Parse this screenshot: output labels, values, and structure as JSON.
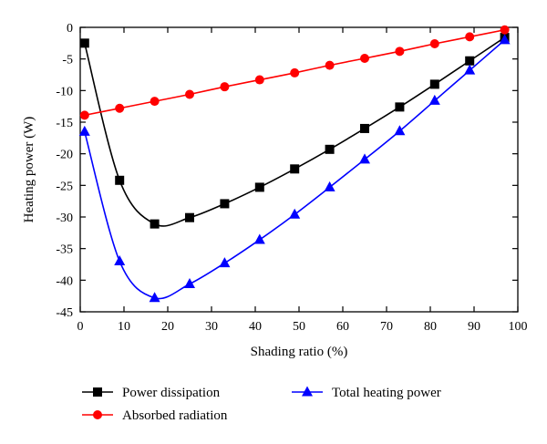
{
  "chart_data": {
    "type": "line",
    "title": "",
    "xlabel": "Shading ratio (%)",
    "ylabel": "Heating power (W)",
    "xlim": [
      0,
      100
    ],
    "ylim": [
      -45,
      0
    ],
    "xticks": [
      0,
      10,
      20,
      30,
      40,
      50,
      60,
      70,
      80,
      90,
      100
    ],
    "yticks": [
      0,
      -5,
      -10,
      -15,
      -20,
      -25,
      -30,
      -35,
      -40,
      -45
    ],
    "grid": false,
    "legend_position": "bottom",
    "series": [
      {
        "name": "Power dissipation",
        "color": "#000000",
        "marker": "square",
        "x": [
          1,
          9,
          17,
          25,
          33,
          41,
          49,
          57,
          65,
          73,
          81,
          89,
          97
        ],
        "y": [
          -2.5,
          -24.2,
          -31.1,
          -30.1,
          -27.9,
          -25.3,
          -22.4,
          -19.3,
          -16.0,
          -12.6,
          -9.0,
          -5.3,
          -1.6
        ]
      },
      {
        "name": "Absorbed radiation",
        "color": "#ff0000",
        "marker": "circle",
        "x": [
          1,
          9,
          17,
          25,
          33,
          41,
          49,
          57,
          65,
          73,
          81,
          89,
          97
        ],
        "y": [
          -13.9,
          -12.8,
          -11.7,
          -10.6,
          -9.4,
          -8.3,
          -7.2,
          -6.0,
          -4.9,
          -3.8,
          -2.6,
          -1.5,
          -0.4
        ]
      },
      {
        "name": "Total heating power",
        "color": "#0000ff",
        "marker": "triangle",
        "x": [
          1,
          9,
          17,
          25,
          33,
          41,
          49,
          57,
          65,
          73,
          81,
          89,
          97
        ],
        "y": [
          -16.5,
          -37.0,
          -42.8,
          -40.6,
          -37.3,
          -33.6,
          -29.6,
          -25.3,
          -20.9,
          -16.4,
          -11.6,
          -6.8,
          -2.0
        ]
      }
    ]
  }
}
